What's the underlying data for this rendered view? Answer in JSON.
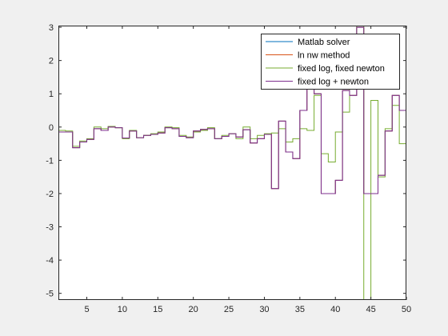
{
  "chart_data": {
    "type": "line",
    "step": true,
    "title": "",
    "xlabel": "",
    "ylabel": "",
    "xlim": [
      1,
      50
    ],
    "ylim": [
      -5.2,
      3.05
    ],
    "xticks": [
      5,
      10,
      15,
      20,
      25,
      30,
      35,
      40,
      45,
      50
    ],
    "yticks": [
      3,
      2,
      1,
      0,
      -1,
      -2,
      -3,
      -4,
      -5
    ],
    "grid": false,
    "legend": {
      "placement": "top-right",
      "box": true
    },
    "series": [
      {
        "name": "Matlab solver",
        "color": "#0072bd",
        "values": [
          -0.15,
          -0.15,
          -0.62,
          -0.45,
          -0.37,
          -0.05,
          -0.1,
          0.0,
          -0.02,
          -0.33,
          -0.12,
          -0.32,
          -0.25,
          -0.22,
          -0.18,
          -0.02,
          -0.05,
          -0.28,
          -0.32,
          -0.12,
          -0.07,
          -0.05,
          -0.35,
          -0.28,
          -0.2,
          -0.3,
          -0.08,
          -0.48,
          -0.35,
          -0.22,
          -1.85,
          0.18,
          -0.75,
          -0.95,
          0.5,
          1.2,
          1.0,
          -2.0,
          -2.0,
          -1.6,
          1.1,
          0.95,
          3.0,
          -2.0,
          -2.0,
          -1.45,
          -0.12,
          0.95,
          0.5,
          0.0
        ]
      },
      {
        "name": "ln nw method",
        "color": "#d95319",
        "values": [
          -0.15,
          -0.15,
          -0.62,
          -0.45,
          -0.37,
          -0.05,
          -0.1,
          0.0,
          -0.02,
          -0.33,
          -0.12,
          -0.32,
          -0.25,
          -0.22,
          -0.18,
          -0.02,
          -0.05,
          -0.28,
          -0.32,
          -0.12,
          -0.07,
          -0.05,
          -0.35,
          -0.28,
          -0.2,
          -0.3,
          -0.08,
          -0.48,
          -0.35,
          -0.22,
          -1.85,
          0.18,
          -0.75,
          -0.95,
          0.5,
          1.2,
          1.0,
          -2.0,
          -2.0,
          -1.6,
          1.1,
          0.95,
          3.0,
          -2.0,
          -2.0,
          -1.45,
          -0.12,
          0.95,
          0.5,
          0.0
        ]
      },
      {
        "name": "fixed log, fixed newton",
        "color": "#77ac30",
        "values": [
          -0.1,
          -0.12,
          -0.58,
          -0.42,
          -0.35,
          0.0,
          -0.05,
          0.02,
          -0.02,
          -0.35,
          -0.1,
          -0.32,
          -0.25,
          -0.2,
          -0.15,
          0.0,
          -0.02,
          -0.25,
          -0.3,
          -0.15,
          -0.1,
          -0.02,
          -0.35,
          -0.25,
          -0.2,
          -0.35,
          0.0,
          -0.35,
          -0.25,
          -0.2,
          -0.18,
          -0.05,
          -0.45,
          -0.35,
          -0.05,
          -0.1,
          0.95,
          -0.8,
          -1.05,
          -0.15,
          0.45,
          1.2,
          3.1,
          -5.2,
          0.8,
          -1.5,
          -0.05,
          0.65,
          -0.5,
          -0.8
        ]
      },
      {
        "name": "fixed log + newton",
        "color": "#7e2f8e",
        "values": [
          -0.15,
          -0.15,
          -0.62,
          -0.45,
          -0.37,
          -0.05,
          -0.1,
          0.0,
          -0.02,
          -0.33,
          -0.12,
          -0.32,
          -0.25,
          -0.22,
          -0.18,
          -0.02,
          -0.05,
          -0.28,
          -0.32,
          -0.12,
          -0.07,
          -0.05,
          -0.35,
          -0.28,
          -0.2,
          -0.3,
          -0.08,
          -0.48,
          -0.35,
          -0.22,
          -1.85,
          0.18,
          -0.75,
          -0.95,
          0.5,
          1.2,
          1.0,
          -2.0,
          -2.0,
          -1.6,
          1.1,
          0.95,
          3.0,
          -2.0,
          -2.0,
          -1.45,
          -0.12,
          0.95,
          0.5,
          0.0
        ]
      }
    ]
  }
}
